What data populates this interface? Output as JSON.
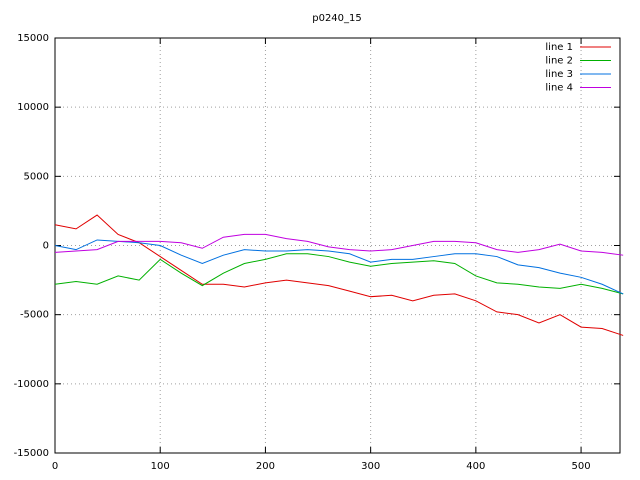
{
  "chart_data": {
    "type": "line",
    "title": "p0240_15",
    "x": [
      0,
      20,
      40,
      60,
      80,
      100,
      120,
      140,
      160,
      180,
      200,
      220,
      240,
      260,
      280,
      300,
      320,
      340,
      360,
      380,
      400,
      420,
      440,
      460,
      480,
      500,
      520,
      540
    ],
    "series": [
      {
        "name": "line 1",
        "color": "#e00000",
        "values": [
          1500,
          1200,
          2200,
          800,
          200,
          -800,
          -1800,
          -2800,
          -2800,
          -3000,
          -2700,
          -2500,
          -2700,
          -2900,
          -3300,
          -3700,
          -3600,
          -4000,
          -3600,
          -3500,
          -4000,
          -4800,
          -5000,
          -5600,
          -5000,
          -5900,
          -6000,
          -6500
        ]
      },
      {
        "name": "line 2",
        "color": "#00b000",
        "values": [
          -2800,
          -2600,
          -2800,
          -2200,
          -2500,
          -1000,
          -2000,
          -2900,
          -2000,
          -1300,
          -1000,
          -600,
          -600,
          -800,
          -1200,
          -1500,
          -1300,
          -1200,
          -1100,
          -1300,
          -2200,
          -2700,
          -2800,
          -3000,
          -3100,
          -2800,
          -3100,
          -3500
        ]
      },
      {
        "name": "line 3",
        "color": "#0070e0",
        "values": [
          0,
          -300,
          400,
          300,
          200,
          0,
          -700,
          -1300,
          -700,
          -300,
          -400,
          -400,
          -300,
          -400,
          -600,
          -1200,
          -1000,
          -1000,
          -800,
          -600,
          -600,
          -800,
          -1400,
          -1600,
          -2000,
          -2300,
          -2800,
          -3500
        ]
      },
      {
        "name": "line 4",
        "color": "#c000e0",
        "values": [
          -500,
          -400,
          -300,
          300,
          300,
          300,
          200,
          -200,
          600,
          800,
          800,
          500,
          300,
          -100,
          -300,
          -400,
          -300,
          0,
          300,
          300,
          200,
          -300,
          -500,
          -300,
          100,
          -400,
          -500,
          -700
        ]
      }
    ],
    "xlim": [
      0,
      537
    ],
    "ylim": [
      -15000,
      15000
    ],
    "xticks": [
      0,
      100,
      200,
      300,
      400,
      500
    ],
    "yticks": [
      -15000,
      -10000,
      -5000,
      0,
      5000,
      10000,
      15000
    ],
    "grid": true,
    "legend": "top-right"
  }
}
